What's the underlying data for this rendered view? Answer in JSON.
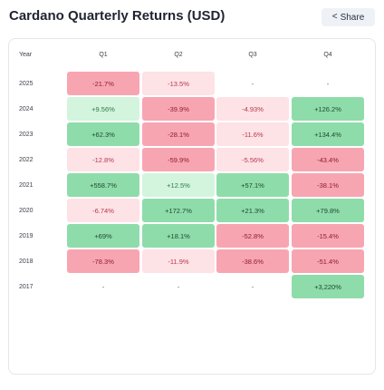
{
  "header": {
    "title": "Cardano Quarterly Returns (USD)",
    "share_label": "Share",
    "share_icon": "share-icon"
  },
  "table": {
    "columns": [
      "Year",
      "Q1",
      "Q2",
      "Q3",
      "Q4"
    ],
    "rows": [
      {
        "year": "2025",
        "cells": [
          {
            "text": "-21.7%",
            "tone": "dark-red"
          },
          {
            "text": "-13.5%",
            "tone": "light-red"
          },
          {
            "text": "-",
            "tone": "empty"
          },
          {
            "text": "-",
            "tone": "empty"
          }
        ]
      },
      {
        "year": "2024",
        "cells": [
          {
            "text": "+9.56%",
            "tone": "light-green"
          },
          {
            "text": "-39.9%",
            "tone": "dark-red"
          },
          {
            "text": "-4.93%",
            "tone": "light-red"
          },
          {
            "text": "+126.2%",
            "tone": "dark-green"
          }
        ]
      },
      {
        "year": "2023",
        "cells": [
          {
            "text": "+62.3%",
            "tone": "dark-green"
          },
          {
            "text": "-28.1%",
            "tone": "dark-red"
          },
          {
            "text": "-11.6%",
            "tone": "light-red"
          },
          {
            "text": "+134.4%",
            "tone": "dark-green"
          }
        ]
      },
      {
        "year": "2022",
        "cells": [
          {
            "text": "-12.8%",
            "tone": "light-red"
          },
          {
            "text": "-59.9%",
            "tone": "dark-red"
          },
          {
            "text": "-5.56%",
            "tone": "light-red"
          },
          {
            "text": "-43.4%",
            "tone": "dark-red"
          }
        ]
      },
      {
        "year": "2021",
        "cells": [
          {
            "text": "+558.7%",
            "tone": "dark-green"
          },
          {
            "text": "+12.5%",
            "tone": "light-green"
          },
          {
            "text": "+57.1%",
            "tone": "dark-green"
          },
          {
            "text": "-38.1%",
            "tone": "dark-red"
          }
        ]
      },
      {
        "year": "2020",
        "cells": [
          {
            "text": "-6.74%",
            "tone": "light-red"
          },
          {
            "text": "+172.7%",
            "tone": "dark-green"
          },
          {
            "text": "+21.3%",
            "tone": "dark-green"
          },
          {
            "text": "+79.8%",
            "tone": "dark-green"
          }
        ]
      },
      {
        "year": "2019",
        "cells": [
          {
            "text": "+69%",
            "tone": "dark-green"
          },
          {
            "text": "+18.1%",
            "tone": "dark-green"
          },
          {
            "text": "-52.8%",
            "tone": "dark-red"
          },
          {
            "text": "-15.4%",
            "tone": "dark-red"
          }
        ]
      },
      {
        "year": "2018",
        "cells": [
          {
            "text": "-78.3%",
            "tone": "dark-red"
          },
          {
            "text": "-11.9%",
            "tone": "light-red"
          },
          {
            "text": "-38.6%",
            "tone": "dark-red"
          },
          {
            "text": "-51.4%",
            "tone": "dark-red"
          }
        ]
      },
      {
        "year": "2017",
        "cells": [
          {
            "text": "-",
            "tone": "empty"
          },
          {
            "text": "-",
            "tone": "empty"
          },
          {
            "text": "-",
            "tone": "empty"
          },
          {
            "text": "+3,220%",
            "tone": "dark-green"
          }
        ]
      }
    ]
  },
  "colors": {
    "dark_red": "#f8a5b2",
    "light_red": "#fde2e6",
    "dark_green": "#8fdcab",
    "light_green": "#d3f4dd"
  }
}
